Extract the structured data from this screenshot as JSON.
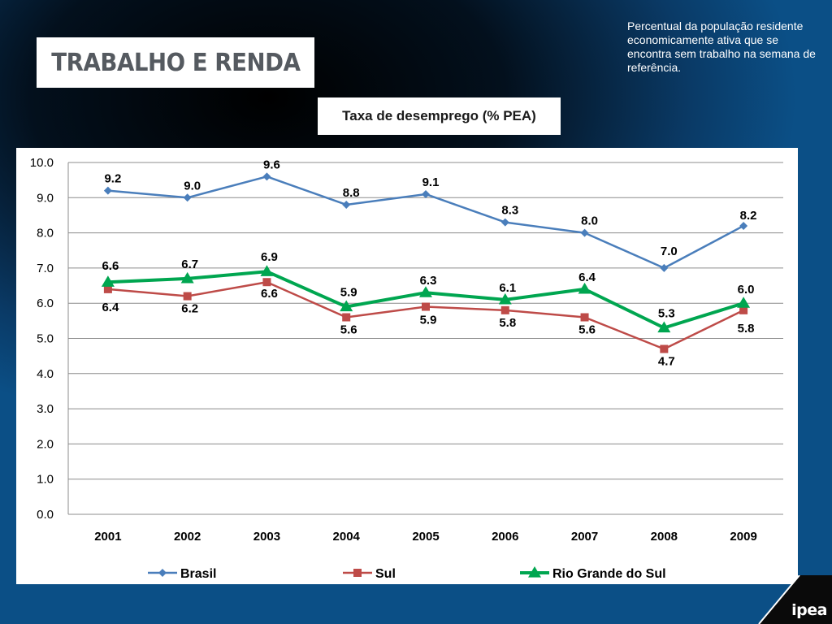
{
  "header": {
    "section_title": "TRABALHO E RENDA"
  },
  "description": "Percentual da população residente economicamente ativa que se encontra sem trabalho na semana de referência.",
  "logo": "ipea",
  "chart_data": {
    "type": "line",
    "title": "Taxa de desemprego (% PEA)",
    "xlabel": "",
    "ylabel": "",
    "categories": [
      "2001",
      "2002",
      "2003",
      "2004",
      "2005",
      "2006",
      "2007",
      "2008",
      "2009"
    ],
    "ylim": [
      0,
      10
    ],
    "yticks": [
      "0.0",
      "1.0",
      "2.0",
      "3.0",
      "4.0",
      "5.0",
      "6.0",
      "7.0",
      "8.0",
      "9.0",
      "10.0"
    ],
    "grid": true,
    "legend_position": "bottom",
    "series": [
      {
        "name": "Brasil",
        "color": "#4a7ebb",
        "marker": "diamond",
        "values": [
          9.2,
          9.0,
          9.6,
          8.8,
          9.1,
          8.3,
          8.0,
          7.0,
          8.2
        ],
        "labels": [
          "9.2",
          "9.0",
          "9.6",
          "8.8",
          "9.1",
          "8.3",
          "8.0",
          "7.0",
          "8.2"
        ]
      },
      {
        "name": "Sul",
        "color": "#be4b48",
        "marker": "square",
        "values": [
          6.4,
          6.2,
          6.6,
          5.6,
          5.9,
          5.8,
          5.6,
          4.7,
          5.8
        ],
        "labels": [
          "6.4",
          "6.2",
          "6.6",
          "5.6",
          "5.9",
          "5.8",
          "5.6",
          "4.7",
          "5.8"
        ]
      },
      {
        "name": "Rio Grande do Sul",
        "color": "#00a650",
        "marker": "triangle",
        "values": [
          6.6,
          6.7,
          6.9,
          5.9,
          6.3,
          6.1,
          6.4,
          5.3,
          6.0
        ],
        "labels": [
          "6.6",
          "6.7",
          "6.9",
          "5.9",
          "6.3",
          "6.1",
          "6.4",
          "5.3",
          "6.0"
        ]
      }
    ]
  }
}
